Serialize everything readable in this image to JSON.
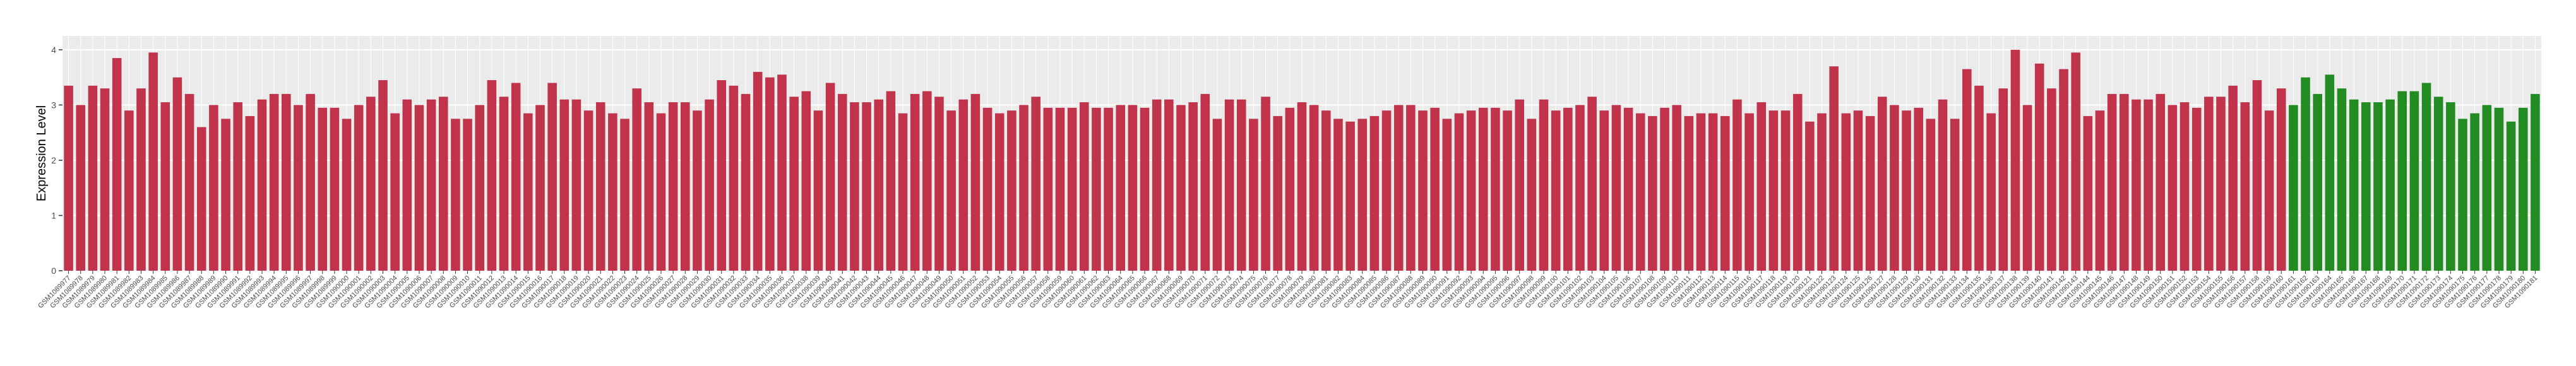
{
  "chart_data": {
    "type": "bar",
    "y_label": "Expression Level",
    "categories": [
      "GSM1089977",
      "GSM1089978",
      "GSM1089979",
      "GSM1089980",
      "GSM1089981",
      "GSM1089982",
      "GSM1089983",
      "GSM1089984",
      "GSM1089985",
      "GSM1089986",
      "GSM1089987",
      "GSM1089988",
      "GSM1089989",
      "GSM1089990",
      "GSM1089991",
      "GSM1089992",
      "GSM1089993",
      "GSM1089994",
      "GSM1089995",
      "GSM1089996",
      "GSM1089997",
      "GSM1089998",
      "GSM1089999",
      "GSM1090000",
      "GSM1090001",
      "GSM1090002",
      "GSM1090003",
      "GSM1090004",
      "GSM1090005",
      "GSM1090006",
      "GSM1090007",
      "GSM1090008",
      "GSM1090009",
      "GSM1090010",
      "GSM1090011",
      "GSM1090012",
      "GSM1090013",
      "GSM1090014",
      "GSM1090015",
      "GSM1090016",
      "GSM1090017",
      "GSM1090018",
      "GSM1090019",
      "GSM1090020",
      "GSM1090021",
      "GSM1090022",
      "GSM1090023",
      "GSM1090024",
      "GSM1090025",
      "GSM1090026",
      "GSM1090027",
      "GSM1090028",
      "GSM1090029",
      "GSM1090030",
      "GSM1090031",
      "GSM1090032",
      "GSM1090033",
      "GSM1090034",
      "GSM1090035",
      "GSM1090036",
      "GSM1090037",
      "GSM1090038",
      "GSM1090039",
      "GSM1090040",
      "GSM1090041",
      "GSM1090042",
      "GSM1090043",
      "GSM1090044",
      "GSM1090045",
      "GSM1090046",
      "GSM1090047",
      "GSM1090048",
      "GSM1090049",
      "GSM1090050",
      "GSM1090051",
      "GSM1090052",
      "GSM1090053",
      "GSM1090054",
      "GSM1090055",
      "GSM1090056",
      "GSM1090057",
      "GSM1090058",
      "GSM1090059",
      "GSM1090060",
      "GSM1090061",
      "GSM1090062",
      "GSM1090063",
      "GSM1090064",
      "GSM1090065",
      "GSM1090066",
      "GSM1090067",
      "GSM1090068",
      "GSM1090069",
      "GSM1090070",
      "GSM1090071",
      "GSM1090072",
      "GSM1090073",
      "GSM1090074",
      "GSM1090075",
      "GSM1090076",
      "GSM1090077",
      "GSM1090078",
      "GSM1090079",
      "GSM1090080",
      "GSM1090081",
      "GSM1090082",
      "GSM1090083",
      "GSM1090084",
      "GSM1090085",
      "GSM1090086",
      "GSM1090087",
      "GSM1090088",
      "GSM1090089",
      "GSM1090090",
      "GSM1090091",
      "GSM1090092",
      "GSM1090093",
      "GSM1090094",
      "GSM1090095",
      "GSM1090096",
      "GSM1090097",
      "GSM1090098",
      "GSM1090099",
      "GSM1090100",
      "GSM1090101",
      "GSM1090102",
      "GSM1090103",
      "GSM1090104",
      "GSM1090105",
      "GSM1090106",
      "GSM1090107",
      "GSM1090108",
      "GSM1090109",
      "GSM1090110",
      "GSM1090111",
      "GSM1090112",
      "GSM1090113",
      "GSM1090114",
      "GSM1090115",
      "GSM1090116",
      "GSM1090117",
      "GSM1090118",
      "GSM1090119",
      "GSM1090120",
      "GSM1090121",
      "GSM1090122",
      "GSM1090123",
      "GSM1090124",
      "GSM1090125",
      "GSM1090126",
      "GSM1090127",
      "GSM1090128",
      "GSM1090129",
      "GSM1090130",
      "GSM1090131",
      "GSM1090132",
      "GSM1090133",
      "GSM1090134",
      "GSM1090135",
      "GSM1090136",
      "GSM1090137",
      "GSM1090138",
      "GSM1090139",
      "GSM1090140",
      "GSM1090141",
      "GSM1090142",
      "GSM1090143",
      "GSM1090144",
      "GSM1090145",
      "GSM1090146",
      "GSM1090147",
      "GSM1090148",
      "GSM1090149",
      "GSM1090150",
      "GSM1090151",
      "GSM1090152",
      "GSM1090153",
      "GSM1090154",
      "GSM1090155",
      "GSM1090156",
      "GSM1090157",
      "GSM1090158",
      "GSM1090159",
      "GSM1090160",
      "GSM1090161",
      "GSM1090162",
      "GSM1090163",
      "GSM1090164",
      "GSM1090165",
      "GSM1090166",
      "GSM1090167",
      "GSM1090168",
      "GSM1090169",
      "GSM1090170",
      "GSM1090171",
      "GSM1090172",
      "GSM1090173",
      "GSM1090174",
      "GSM1090175",
      "GSM1090176",
      "GSM1090177",
      "GSM1090178",
      "GSM1090179",
      "GSM1090180",
      "GSM1090181"
    ],
    "series": [
      {
        "color": "#c0334a",
        "values": [
          3.35,
          3.0,
          3.35,
          3.3,
          3.85,
          2.9,
          3.3,
          3.95,
          3.05,
          3.5,
          3.2,
          2.6,
          3.0,
          2.75,
          3.05,
          2.8,
          3.1,
          3.2,
          3.2,
          3.0,
          3.2,
          2.95,
          2.95,
          2.75,
          3.0,
          3.15,
          3.45,
          2.85,
          3.1,
          3.0,
          3.1,
          3.15,
          2.75,
          2.75,
          3.0,
          3.45,
          3.15,
          3.4,
          2.85,
          3.0,
          3.4,
          3.1,
          3.1,
          2.9,
          3.05,
          2.85,
          2.75,
          3.3,
          3.05,
          2.85,
          3.05,
          3.05,
          2.9,
          3.1,
          3.45,
          3.35,
          3.2,
          3.6,
          3.5,
          3.55,
          3.15,
          3.25,
          2.9,
          3.4,
          3.2,
          3.05,
          3.05,
          3.1,
          3.25,
          2.85,
          3.2,
          3.25,
          3.15,
          2.9,
          3.1,
          3.2,
          2.95,
          2.85,
          2.9,
          3.0,
          3.15,
          2.95,
          2.95,
          2.95,
          3.05,
          2.95,
          2.95,
          3.0,
          3.0,
          2.95,
          3.1,
          3.1,
          3.0,
          3.05,
          3.2,
          2.75,
          3.1,
          3.1,
          2.75,
          3.15,
          2.8,
          2.95,
          3.05,
          3.0,
          2.9,
          2.75,
          2.7,
          2.75,
          2.8,
          2.9,
          3.0,
          3.0,
          2.9,
          2.95,
          2.75,
          2.85,
          2.9,
          2.95,
          2.95,
          2.9,
          3.1,
          2.75,
          3.1,
          2.9,
          2.95,
          3.0,
          3.15,
          2.9,
          3.0,
          2.95,
          2.85,
          2.8,
          2.95,
          3.0,
          2.8,
          2.85,
          2.85,
          2.8,
          3.1,
          2.85,
          3.05,
          2.9,
          2.9,
          3.2,
          2.7,
          2.85,
          3.7,
          2.85,
          2.9,
          2.8,
          3.15,
          3.0,
          2.9,
          2.95,
          2.75,
          3.1,
          2.75,
          3.65,
          3.35,
          2.85,
          3.3,
          4.0,
          3.0,
          3.75,
          3.3,
          3.65,
          3.95,
          2.8,
          2.9,
          3.2,
          3.2,
          3.1,
          3.1,
          3.2,
          3.0,
          3.05,
          2.95,
          3.15,
          3.15,
          3.35,
          3.05,
          3.45,
          2.9,
          3.3,
          null,
          null,
          null,
          null,
          null,
          null,
          null,
          null,
          null,
          null,
          null,
          null,
          null,
          null,
          null,
          null,
          null,
          null,
          null,
          null,
          null
        ]
      },
      {
        "color": "#228b22",
        "values": [
          null,
          null,
          null,
          null,
          null,
          null,
          null,
          null,
          null,
          null,
          null,
          null,
          null,
          null,
          null,
          null,
          null,
          null,
          null,
          null,
          null,
          null,
          null,
          null,
          null,
          null,
          null,
          null,
          null,
          null,
          null,
          null,
          null,
          null,
          null,
          null,
          null,
          null,
          null,
          null,
          null,
          null,
          null,
          null,
          null,
          null,
          null,
          null,
          null,
          null,
          null,
          null,
          null,
          null,
          null,
          null,
          null,
          null,
          null,
          null,
          null,
          null,
          null,
          null,
          null,
          null,
          null,
          null,
          null,
          null,
          null,
          null,
          null,
          null,
          null,
          null,
          null,
          null,
          null,
          null,
          null,
          null,
          null,
          null,
          null,
          null,
          null,
          null,
          null,
          null,
          null,
          null,
          null,
          null,
          null,
          null,
          null,
          null,
          null,
          null,
          null,
          null,
          null,
          null,
          null,
          null,
          null,
          null,
          null,
          null,
          null,
          null,
          null,
          null,
          null,
          null,
          null,
          null,
          null,
          null,
          null,
          null,
          null,
          null,
          null,
          null,
          null,
          null,
          null,
          null,
          null,
          null,
          null,
          null,
          null,
          null,
          null,
          null,
          null,
          null,
          null,
          null,
          null,
          null,
          null,
          null,
          null,
          null,
          null,
          null,
          null,
          null,
          null,
          null,
          null,
          null,
          null,
          null,
          null,
          null,
          null,
          null,
          null,
          null,
          null,
          null,
          null,
          null,
          null,
          null,
          null,
          null,
          null,
          null,
          null,
          null,
          null,
          null,
          null,
          null,
          null,
          null,
          null,
          null,
          3.0,
          3.5,
          3.2,
          3.55,
          3.3,
          3.1,
          3.05,
          3.05,
          3.1,
          3.25,
          3.25,
          3.4,
          3.15,
          3.05,
          2.75,
          2.85,
          3.0,
          2.95,
          2.7,
          2.95,
          3.2
        ]
      }
    ],
    "ylim": [
      0,
      4.25
    ],
    "yticks": [
      0,
      1,
      2,
      3,
      4
    ],
    "grid": true
  }
}
